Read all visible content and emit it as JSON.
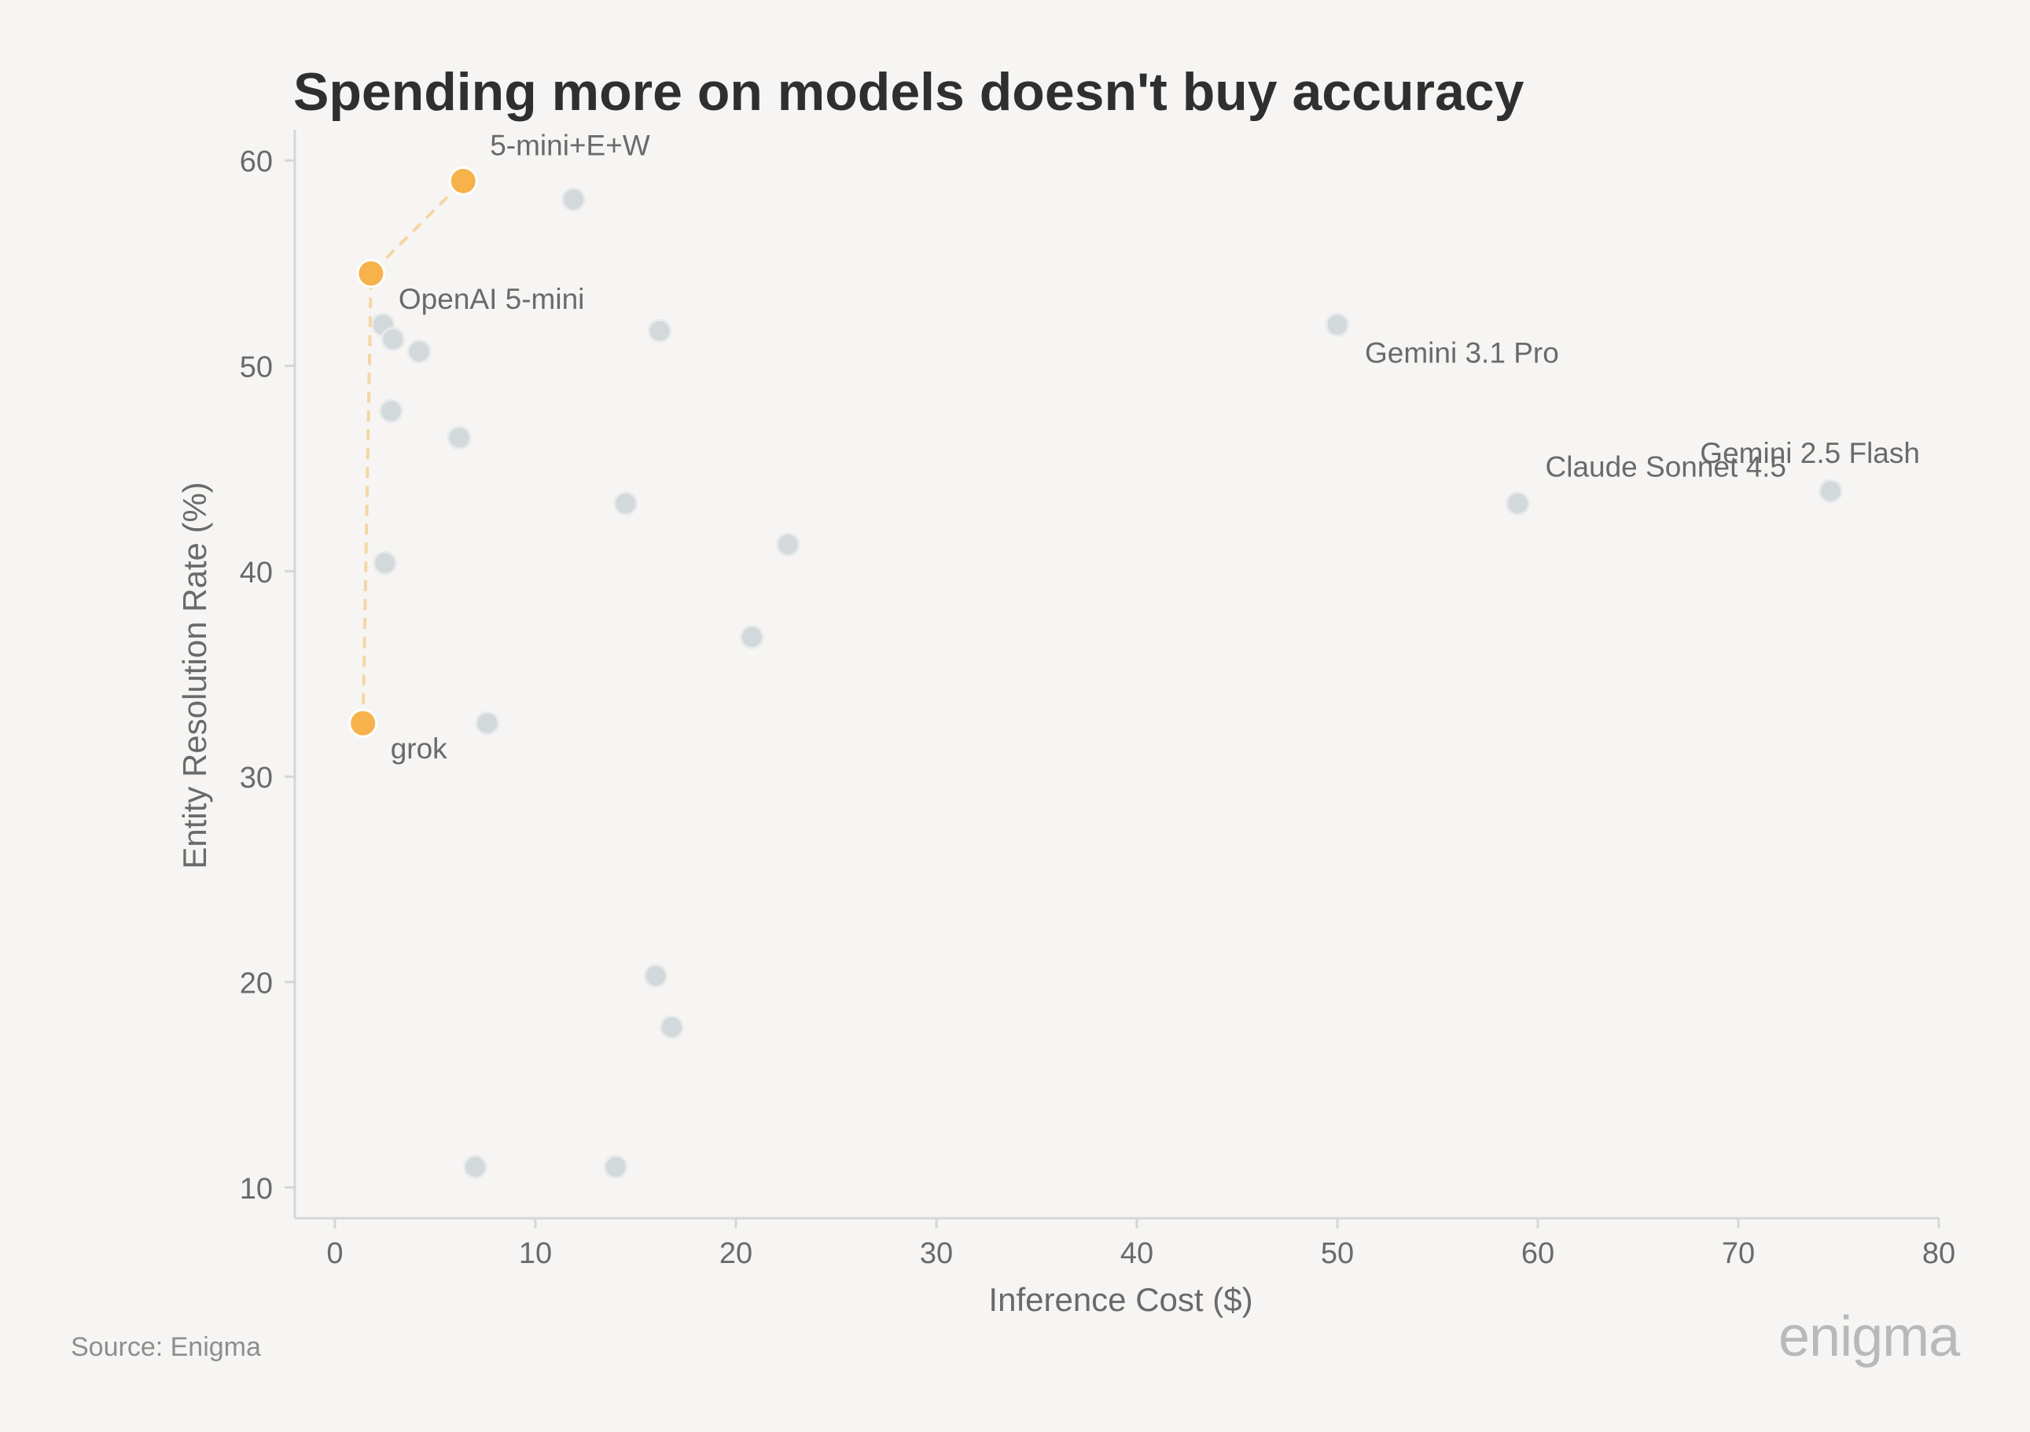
{
  "chart_data": {
    "type": "scatter",
    "title": "Spending more on models doesn't buy accuracy",
    "xlabel": "Inference Cost ($)",
    "ylabel": "Entity Resolution Rate (%)",
    "xlim": [
      -2,
      80
    ],
    "ylim": [
      8.5,
      61.5
    ],
    "xticks": [
      0,
      10,
      20,
      30,
      40,
      50,
      60,
      70,
      80
    ],
    "yticks": [
      10,
      20,
      30,
      40,
      50,
      60
    ],
    "grid": false,
    "colors": {
      "highlight": "#f7b24b",
      "highlight_line": "#f5d6a3",
      "other": "#d3d8da",
      "other_edge": "#e8ebec",
      "axis": "#d6d6d6",
      "text": "#6a6a6a"
    },
    "frontier": [
      {
        "x": 1.4,
        "y": 32.6,
        "label": "grok"
      },
      {
        "x": 1.8,
        "y": 54.5,
        "label": "OpenAI 5-mini"
      },
      {
        "x": 6.4,
        "y": 59.0,
        "label": "5-mini+E+W"
      }
    ],
    "others": [
      {
        "x": 11.9,
        "y": 58.1,
        "label": ""
      },
      {
        "x": 16.2,
        "y": 51.7,
        "label": ""
      },
      {
        "x": 2.4,
        "y": 52.0,
        "label": ""
      },
      {
        "x": 2.9,
        "y": 51.3,
        "label": ""
      },
      {
        "x": 4.2,
        "y": 50.7,
        "label": ""
      },
      {
        "x": 2.8,
        "y": 47.8,
        "label": ""
      },
      {
        "x": 6.2,
        "y": 46.5,
        "label": ""
      },
      {
        "x": 14.5,
        "y": 43.3,
        "label": ""
      },
      {
        "x": 22.6,
        "y": 41.3,
        "label": ""
      },
      {
        "x": 2.5,
        "y": 40.4,
        "label": ""
      },
      {
        "x": 20.8,
        "y": 36.8,
        "label": ""
      },
      {
        "x": 7.6,
        "y": 32.6,
        "label": ""
      },
      {
        "x": 16.0,
        "y": 20.3,
        "label": ""
      },
      {
        "x": 16.8,
        "y": 17.8,
        "label": ""
      },
      {
        "x": 7.0,
        "y": 11.0,
        "label": ""
      },
      {
        "x": 14.0,
        "y": 11.0,
        "label": ""
      },
      {
        "x": 50.0,
        "y": 52.0,
        "label": "Gemini 3.1 Pro"
      },
      {
        "x": 59.0,
        "y": 43.3,
        "label": "Claude Sonnet 4.5"
      },
      {
        "x": 74.6,
        "y": 43.9,
        "label": "Gemini 2.5 Flash"
      }
    ]
  },
  "footer": {
    "source": "Source: Enigma",
    "logo": "enigma"
  }
}
